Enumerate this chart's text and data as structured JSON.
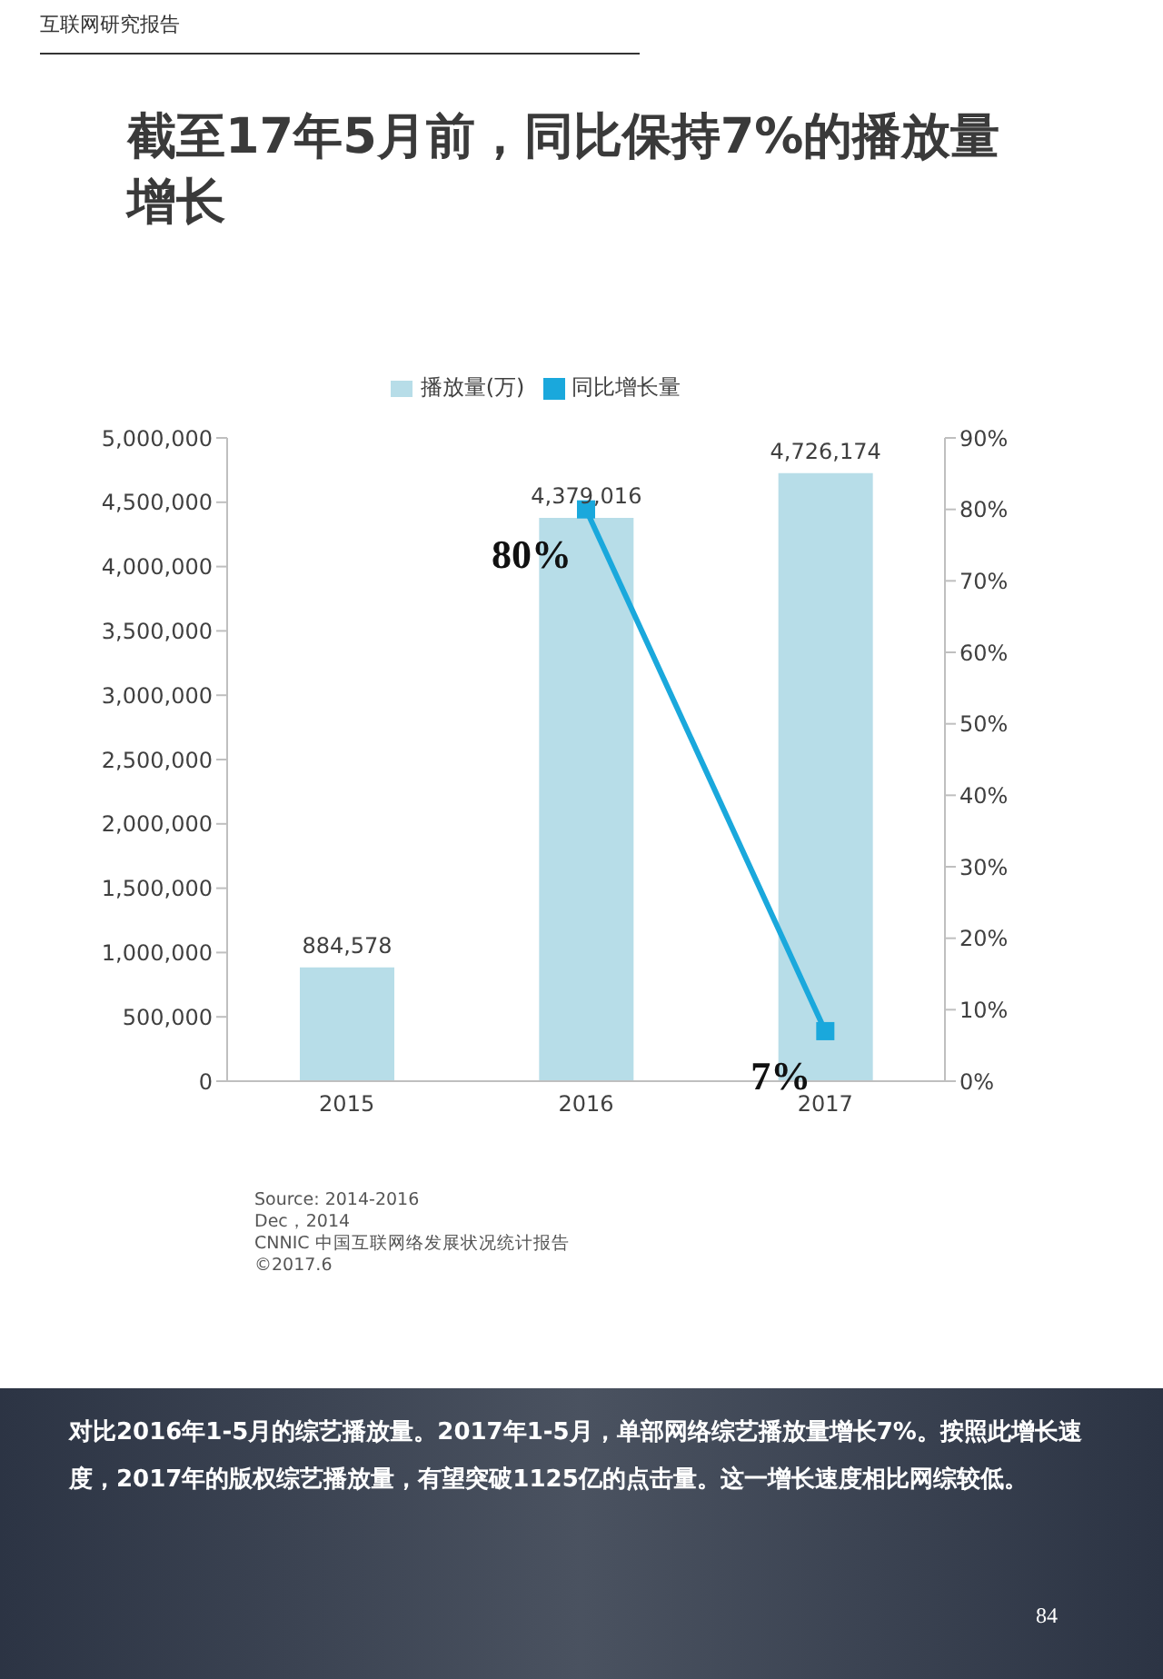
{
  "chart_data": {
    "type": "bar",
    "title": "截至17年5月前，同比保持7%的播放量增长",
    "categories": [
      "2015",
      "2016",
      "2017"
    ],
    "series": [
      {
        "name": "播放量(万)",
        "color": "#b7dde8",
        "values": [
          884578,
          4379016,
          4726174
        ],
        "value_labels": [
          "884,578",
          "4,379,016",
          "4,726,174"
        ]
      },
      {
        "name": "同比增长量",
        "type": "line",
        "axis": "y2",
        "color": "#1aa8dc",
        "values": [
          null,
          80,
          7
        ],
        "value_labels": [
          null,
          "80%",
          "7%"
        ]
      }
    ],
    "legend": "top",
    "marker": "square",
    "grid": false,
    "ylim": [
      0,
      5000000
    ],
    "yticks": [
      {
        "value": 0,
        "label": "0"
      },
      {
        "value": 500000,
        "label": "500,000"
      },
      {
        "value": 1000000,
        "label": "1,000,000"
      },
      {
        "value": 1500000,
        "label": "1,500,000"
      },
      {
        "value": 2000000,
        "label": "2,000,000"
      },
      {
        "value": 2500000,
        "label": "2,500,000"
      },
      {
        "value": 3000000,
        "label": "3,000,000"
      },
      {
        "value": 3500000,
        "label": "3,500,000"
      },
      {
        "value": 4000000,
        "label": "4,000,000"
      },
      {
        "value": 4500000,
        "label": "4,500,000"
      },
      {
        "value": 5000000,
        "label": "5,000,000"
      }
    ],
    "y2lim": [
      0,
      90
    ],
    "y2ticks": [
      {
        "value": 0,
        "label": "0%"
      },
      {
        "value": 10,
        "label": "10%"
      },
      {
        "value": 20,
        "label": "20%"
      },
      {
        "value": 30,
        "label": "30%"
      },
      {
        "value": 40,
        "label": "40%"
      },
      {
        "value": 50,
        "label": "50%"
      },
      {
        "value": 60,
        "label": "60%"
      },
      {
        "value": 70,
        "label": "70%"
      },
      {
        "value": 80,
        "label": "80%"
      },
      {
        "value": 90,
        "label": "90%"
      }
    ],
    "annotations": [
      "互联网研究报告",
      "Source: 2014-2016",
      "Dec，2014",
      "CNNIC 中国互联网络发展状况统计报告",
      "©2017.6",
      "对比2016年1-5月的综艺播放量。2017年1-5月，单部网络综艺播放量增长7%。按照此增长速度，2017年的版权综艺播放量，有望突破1125亿的点击量。这一增长速度相比网综较低。",
      "84"
    ]
  }
}
